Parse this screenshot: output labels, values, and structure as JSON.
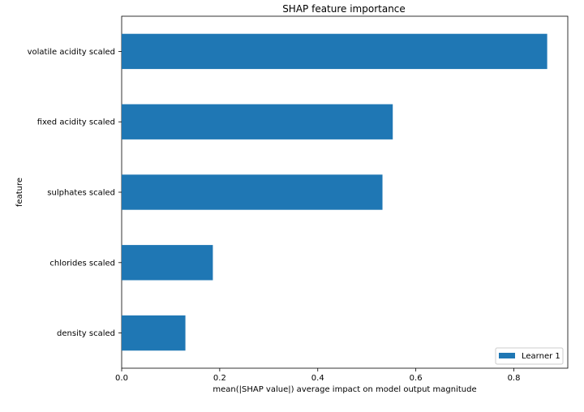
{
  "chart_data": {
    "type": "bar",
    "orientation": "horizontal",
    "title": "SHAP feature importance",
    "xlabel": "mean(|SHAP value|) average impact on model output magnitude",
    "ylabel": "feature",
    "categories": [
      "volatile acidity scaled",
      "fixed acidity scaled",
      "sulphates scaled",
      "chlorides scaled",
      "density scaled"
    ],
    "series": [
      {
        "name": "Learner 1",
        "values": [
          0.868,
          0.553,
          0.532,
          0.186,
          0.13
        ],
        "color": "#1f77b4"
      }
    ],
    "xlim": [
      0,
      0.91
    ],
    "xticks": [
      0.0,
      0.2,
      0.4,
      0.6,
      0.8
    ],
    "xtick_labels": [
      "0.0",
      "0.2",
      "0.4",
      "0.6",
      "0.8"
    ],
    "grid": false,
    "legend": {
      "placement": "lower-right",
      "entries": [
        "Learner 1"
      ]
    }
  }
}
